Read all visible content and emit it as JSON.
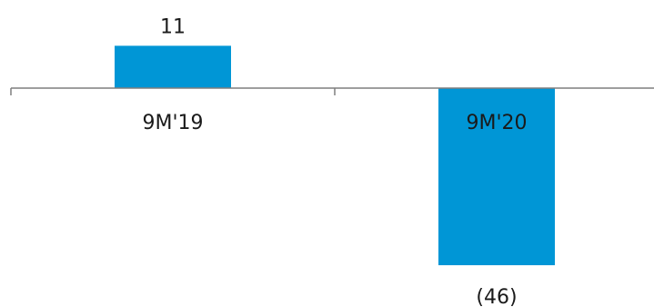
{
  "chart_data": {
    "type": "bar",
    "categories": [
      "9M'19",
      "9M'20"
    ],
    "values": [
      11,
      -46
    ],
    "data_labels": [
      "11",
      "(46)"
    ],
    "title": "",
    "xlabel": "",
    "ylabel": "",
    "ylim": [
      -46,
      11
    ],
    "grid": false,
    "legend": "none",
    "bar_color": "#0096D6",
    "axis_color": "#7F7F7F",
    "text_color": "#1A1A1A"
  }
}
